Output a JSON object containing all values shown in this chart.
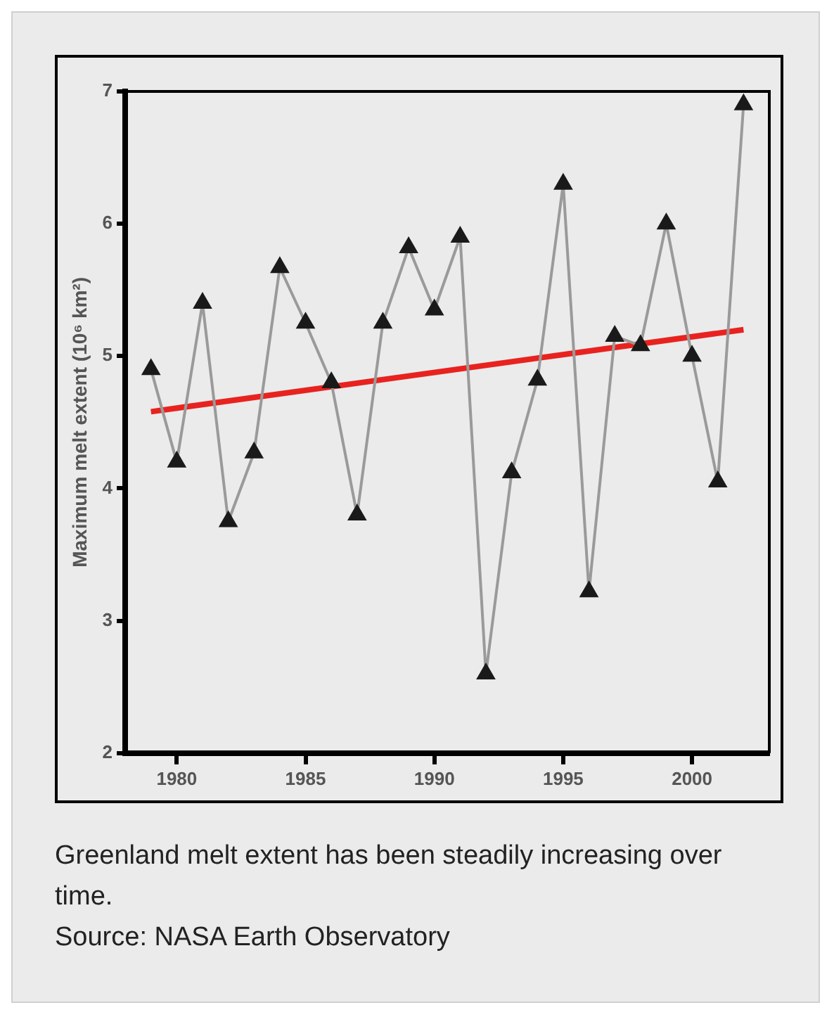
{
  "chart_data": {
    "type": "line",
    "ylabel": "Maximum melt extent (10⁶ km²)",
    "x": [
      1979,
      1980,
      1981,
      1982,
      1983,
      1984,
      1985,
      1986,
      1987,
      1988,
      1989,
      1990,
      1991,
      1992,
      1993,
      1994,
      1995,
      1996,
      1997,
      1998,
      1999,
      2000,
      2001,
      2002
    ],
    "series": [
      {
        "color": "#1a1a1a",
        "marker": "triangle",
        "values": [
          4.9,
          4.2,
          5.4,
          3.75,
          4.27,
          5.67,
          5.25,
          4.8,
          3.8,
          5.25,
          5.82,
          5.35,
          5.9,
          2.6,
          4.12,
          4.82,
          6.3,
          3.22,
          5.15,
          5.08,
          6.0,
          5.0,
          4.05,
          6.9
        ]
      },
      {
        "type": "line",
        "color": "#e8231f",
        "marker": "none",
        "x": [
          1979,
          2002
        ],
        "values": [
          4.58,
          5.2
        ]
      }
    ],
    "xlim": [
      1978,
      2003
    ],
    "xticks": [
      1980,
      1985,
      1990,
      1995,
      2000
    ],
    "ylim": [
      2,
      7
    ],
    "yticks": [
      2,
      3,
      4,
      5,
      6,
      7
    ],
    "grid": false,
    "legend": false,
    "annotations": [
      "Greenland melt extent has been steadily increasing over time.",
      "Source: NASA Earth Observatory"
    ]
  }
}
